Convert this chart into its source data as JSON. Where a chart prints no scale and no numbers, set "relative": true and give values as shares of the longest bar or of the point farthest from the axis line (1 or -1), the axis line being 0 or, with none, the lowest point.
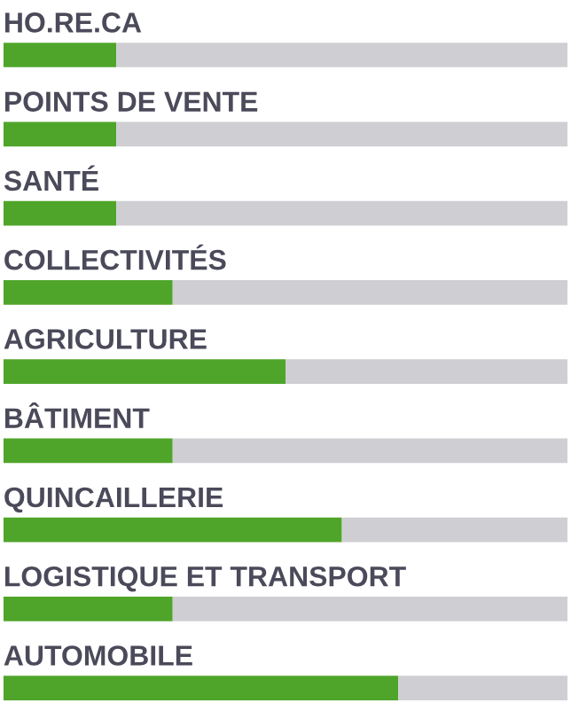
{
  "chart_data": {
    "type": "bar",
    "orientation": "horizontal",
    "stacked": true,
    "relative": true,
    "categories": [
      "HO.RE.CA",
      "POINTS DE VENTE",
      "SANTÉ",
      "COLLECTIVITÉS",
      "AGRICULTURE",
      "BÂTIMENT",
      "QUINCAILLERIE",
      "LOGISTIQUE ET TRANSPORT",
      "AUTOMOBILE"
    ],
    "series": [
      {
        "color": "#4fa52a",
        "values": [
          0.2,
          0.2,
          0.2,
          0.3,
          0.5,
          0.3,
          0.6,
          0.3,
          0.7
        ]
      },
      {
        "color": "#cfced3",
        "values": [
          0.8,
          0.8,
          0.8,
          0.7,
          0.5,
          0.7,
          0.4,
          0.7,
          0.3
        ]
      }
    ],
    "legend": false
  }
}
